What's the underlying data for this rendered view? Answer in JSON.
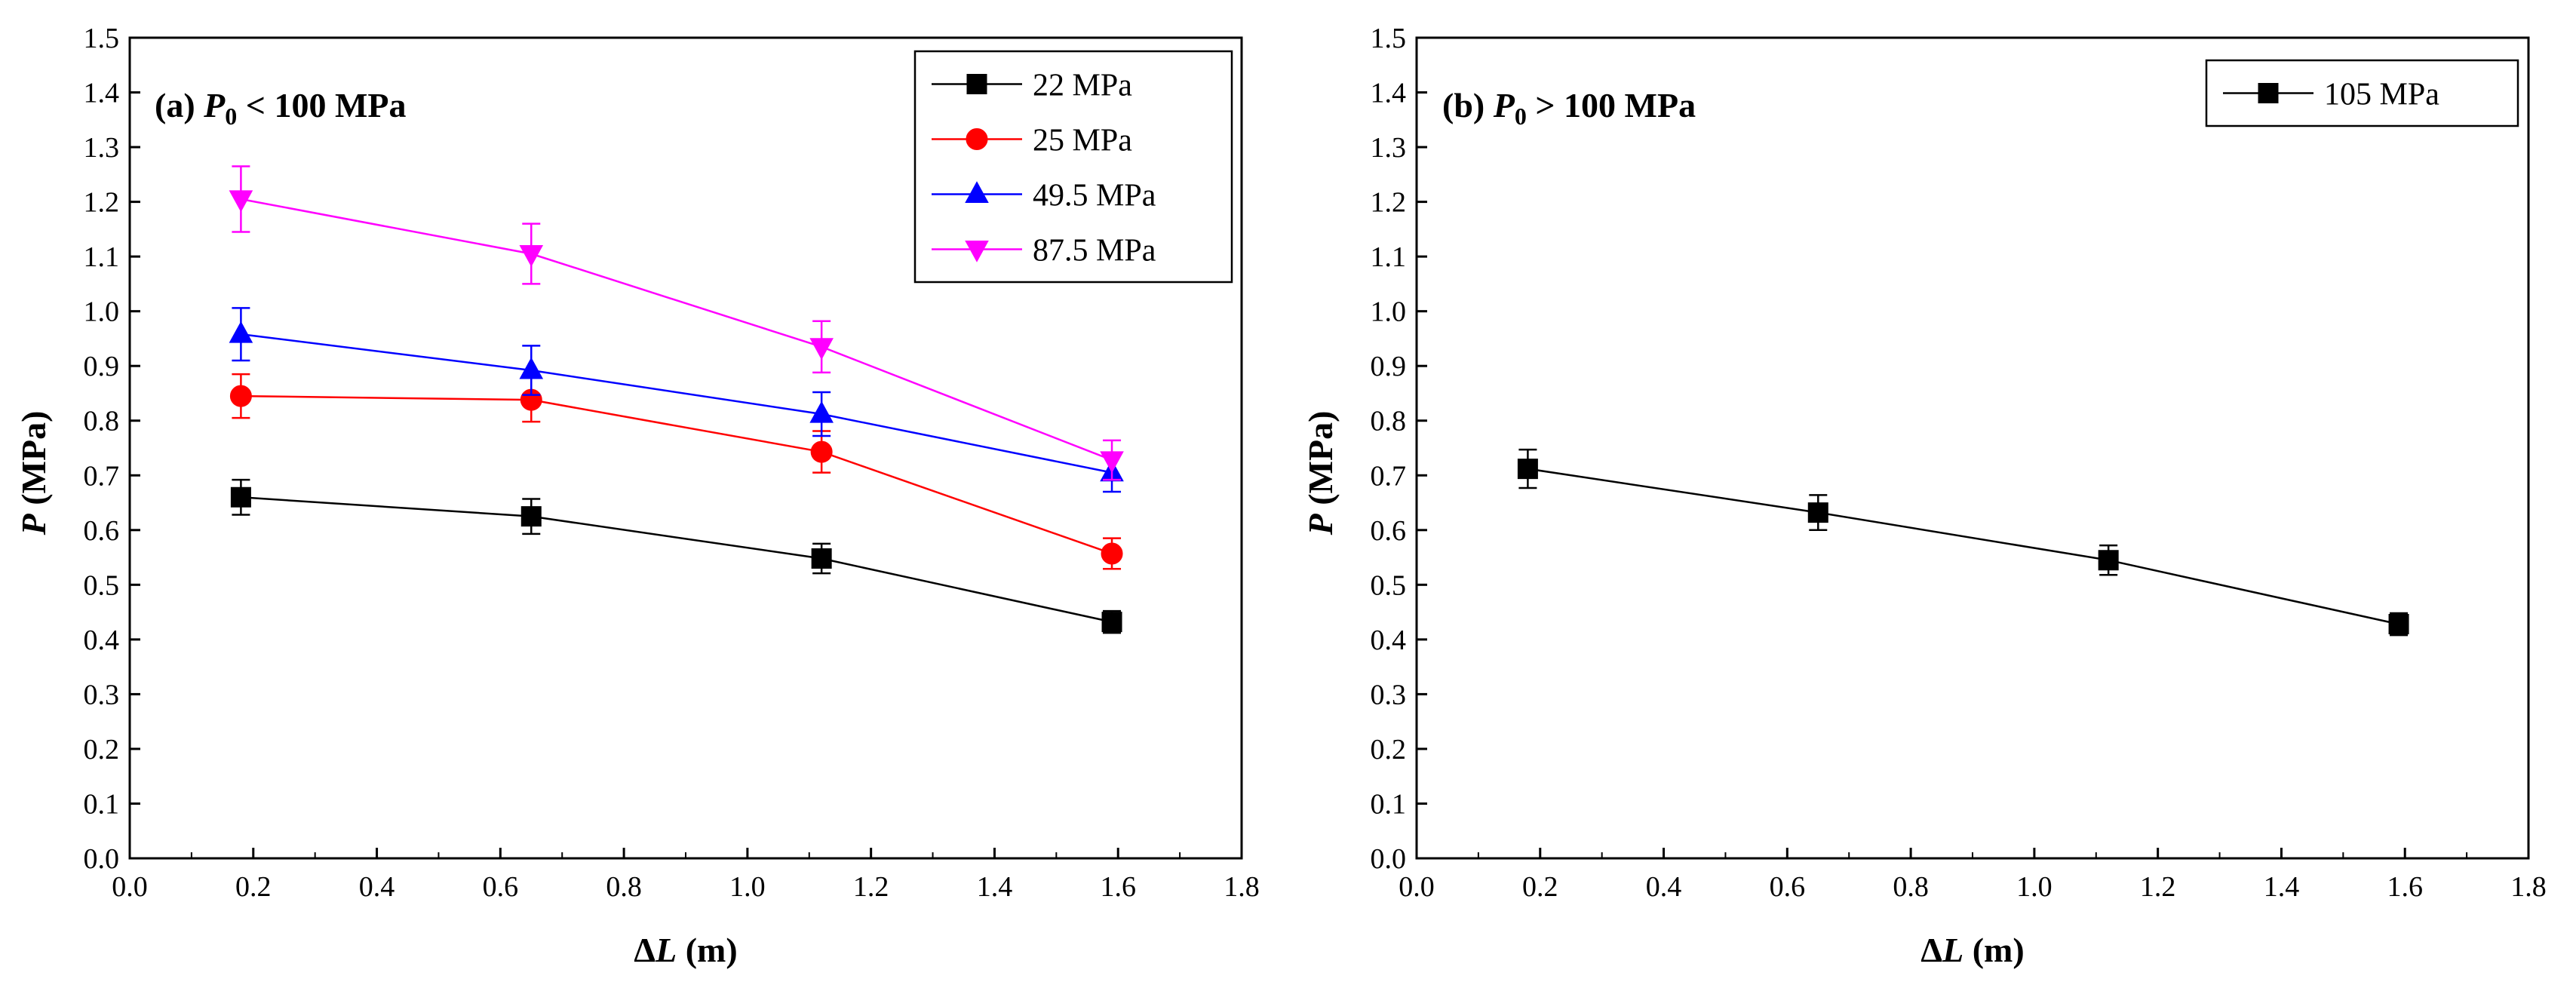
{
  "chart_data": [
    {
      "type": "line",
      "panel_label": {
        "prefix": "(a) ",
        "symbol": "P",
        "subscript": "0",
        "suffix": " < 100 MPa"
      },
      "xlabel": {
        "prefix": "Δ",
        "symbol": "L",
        "unit": " (m)"
      },
      "ylabel": {
        "symbol": "P",
        "unit": " (MPa)"
      },
      "xlim": [
        0.0,
        1.8
      ],
      "ylim": [
        0.0,
        1.5
      ],
      "x_ticks": [
        "0.0",
        "0.2",
        "0.4",
        "0.6",
        "0.8",
        "1.0",
        "1.2",
        "1.4",
        "1.6",
        "1.8"
      ],
      "y_ticks": [
        "0.0",
        "0.1",
        "0.2",
        "0.3",
        "0.4",
        "0.5",
        "0.6",
        "0.7",
        "0.8",
        "0.9",
        "1.0",
        "1.1",
        "1.2",
        "1.3",
        "1.4",
        "1.5"
      ],
      "grid": false,
      "legend_position": "top-right",
      "x": [
        0.18,
        0.65,
        1.12,
        1.59
      ],
      "series": [
        {
          "name": "22 MPa",
          "color": "#000000",
          "marker": "square",
          "values": [
            0.66,
            0.625,
            0.548,
            0.432
          ],
          "errors": [
            0.032,
            0.032,
            0.027,
            0.02
          ]
        },
        {
          "name": "25 MPa",
          "color": "#ff0000",
          "marker": "circle",
          "values": [
            0.845,
            0.838,
            0.743,
            0.557
          ],
          "errors": [
            0.04,
            0.04,
            0.038,
            0.028
          ]
        },
        {
          "name": "49.5 MPa",
          "color": "#0000ff",
          "marker": "triangle-up",
          "values": [
            0.958,
            0.892,
            0.812,
            0.705
          ],
          "errors": [
            0.048,
            0.045,
            0.04,
            0.035
          ]
        },
        {
          "name": "87.5 MPa",
          "color": "#ff00ff",
          "marker": "triangle-down",
          "values": [
            1.205,
            1.105,
            0.935,
            0.728
          ],
          "errors": [
            0.06,
            0.055,
            0.047,
            0.036
          ]
        }
      ]
    },
    {
      "type": "line",
      "panel_label": {
        "prefix": "(b) ",
        "symbol": "P",
        "subscript": "0",
        "suffix": " > 100 MPa"
      },
      "xlabel": {
        "prefix": "Δ",
        "symbol": "L",
        "unit": " (m)"
      },
      "ylabel": {
        "symbol": "P",
        "unit": " (MPa)"
      },
      "xlim": [
        0.0,
        1.8
      ],
      "ylim": [
        0.0,
        1.5
      ],
      "x_ticks": [
        "0.0",
        "0.2",
        "0.4",
        "0.6",
        "0.8",
        "1.0",
        "1.2",
        "1.4",
        "1.6",
        "1.8"
      ],
      "y_ticks": [
        "0.0",
        "0.1",
        "0.2",
        "0.3",
        "0.4",
        "0.5",
        "0.6",
        "0.7",
        "0.8",
        "0.9",
        "1.0",
        "1.1",
        "1.2",
        "1.3",
        "1.4",
        "1.5"
      ],
      "grid": false,
      "legend_position": "top-right",
      "x": [
        0.18,
        0.65,
        1.12,
        1.59
      ],
      "series": [
        {
          "name": "105 MPa",
          "color": "#000000",
          "marker": "square",
          "values": [
            0.712,
            0.632,
            0.545,
            0.428
          ],
          "errors": [
            0.035,
            0.032,
            0.027,
            0.02
          ]
        }
      ]
    }
  ]
}
